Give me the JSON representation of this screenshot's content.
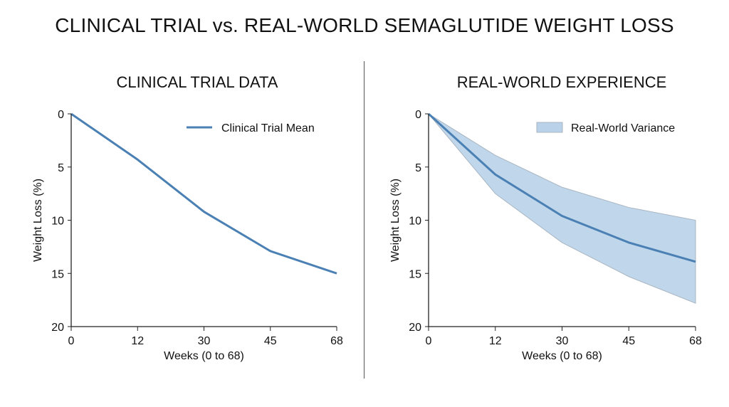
{
  "title": "CLINICAL TRIAL vs. REAL-WORLD SEMAGLUTIDE WEIGHT LOSS",
  "colors": {
    "line": "#4a80b3",
    "band_fill": "#b9d1e9",
    "band_stroke": "#a9b6c2",
    "axis": "#222222"
  },
  "chart_data": [
    {
      "type": "line",
      "title": "CLINICAL TRIAL DATA",
      "xlabel": "Weeks (0 to 68)",
      "ylabel": "Weight Loss (%)",
      "x_ticks": [
        "0",
        "12",
        "30",
        "45",
        "68"
      ],
      "y_ticks": [
        "0",
        "5",
        "10",
        "15",
        "20"
      ],
      "ylim": [
        0,
        20
      ],
      "y_inverted": true,
      "x_tick_spacing": "equal",
      "legend": {
        "placement": "top-right",
        "entries": [
          "Clinical Trial Mean"
        ]
      },
      "series": [
        {
          "name": "Clinical Trial Mean",
          "x": [
            0,
            12,
            30,
            45,
            68
          ],
          "y": [
            0,
            4.3,
            9.2,
            12.9,
            15.0
          ]
        }
      ]
    },
    {
      "type": "area",
      "title": "REAL-WORLD EXPERIENCE",
      "xlabel": "Weeks (0 to 68)",
      "ylabel": "Weight Loss (%)",
      "x_ticks": [
        "0",
        "12",
        "30",
        "45",
        "68"
      ],
      "y_ticks": [
        "0",
        "5",
        "10",
        "15",
        "20"
      ],
      "ylim": [
        0,
        20
      ],
      "y_inverted": true,
      "x_tick_spacing": "equal",
      "legend": {
        "placement": "top-right",
        "entries": [
          "Real-World Variance"
        ]
      },
      "series": [
        {
          "x": [
            0,
            12,
            30,
            45,
            68
          ],
          "y": [
            0,
            5.7,
            9.6,
            12.1,
            13.9
          ]
        }
      ],
      "band": {
        "name": "Real-World Variance",
        "x": [
          0,
          12,
          30,
          45,
          68
        ],
        "lower": [
          0,
          3.9,
          6.9,
          8.8,
          10.0
        ],
        "upper": [
          0,
          7.5,
          12.1,
          15.3,
          17.8
        ]
      }
    }
  ]
}
